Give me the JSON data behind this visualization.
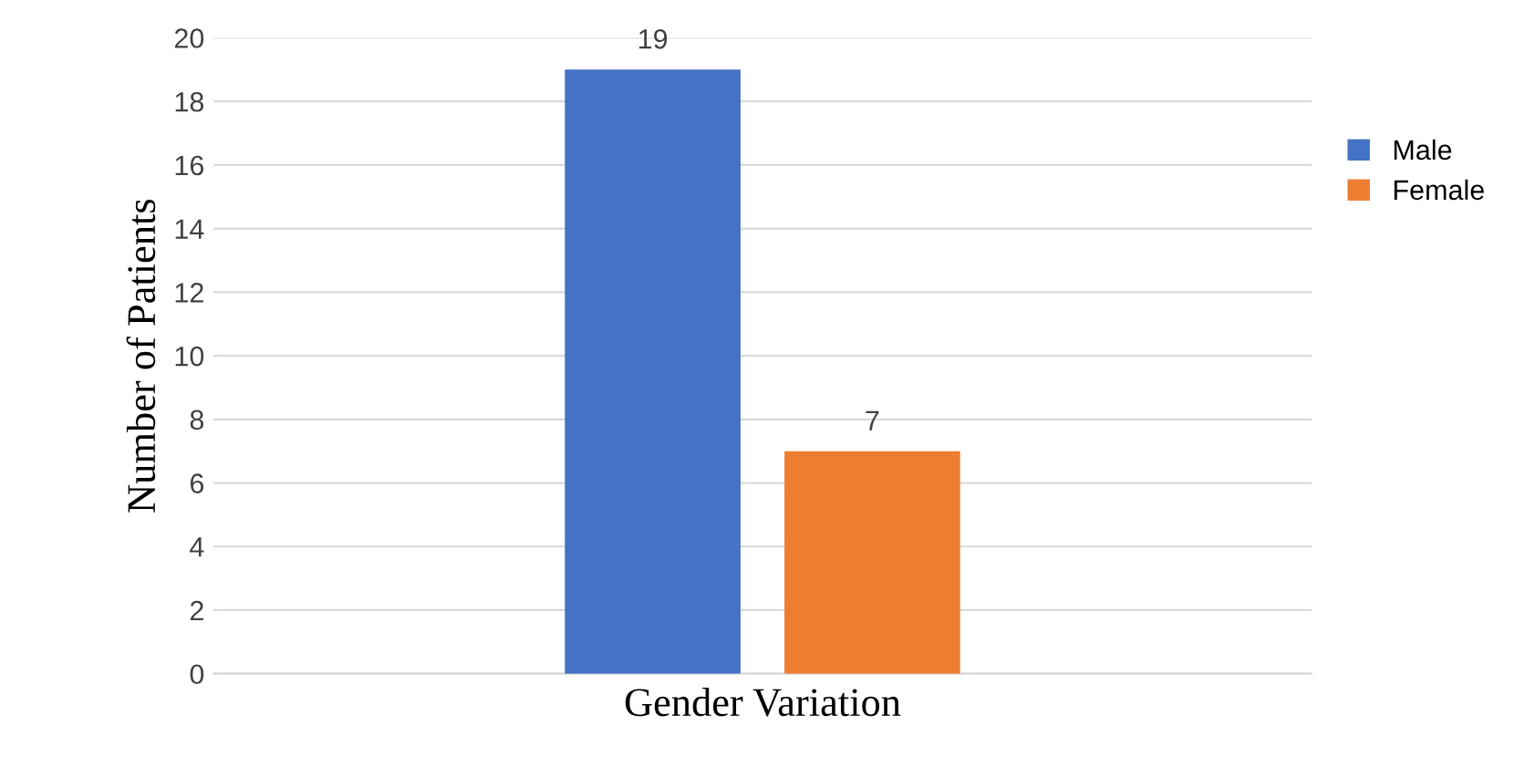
{
  "chart_data": {
    "type": "bar",
    "xlabel": "Gender Variation",
    "ylabel": "Number of Patients",
    "categories": [
      null
    ],
    "series": [
      {
        "name": "Male",
        "color": "#4472c4",
        "values": [
          19
        ]
      },
      {
        "name": "Female",
        "color": "#ed7d31",
        "values": [
          7
        ]
      }
    ],
    "ylim": [
      0,
      20
    ],
    "yticks": [
      0,
      2,
      4,
      6,
      8,
      10,
      12,
      14,
      16,
      18,
      20
    ],
    "grid": "y",
    "legend": "right",
    "data_labels": true
  }
}
